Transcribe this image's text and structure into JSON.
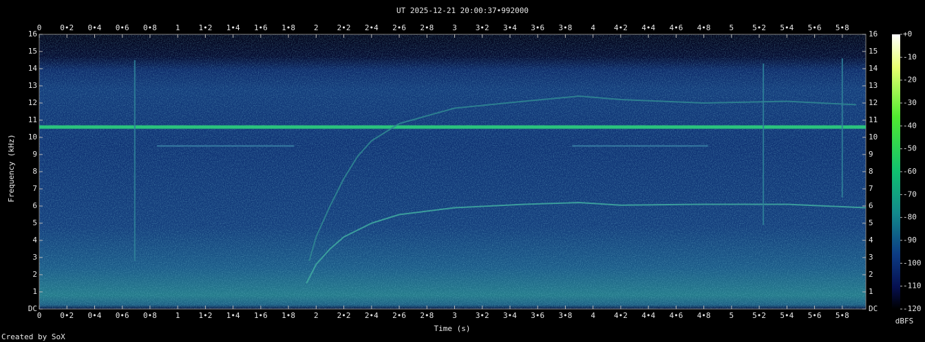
{
  "chart_data": {
    "type": "spectrogram",
    "title": "UT 2025-12-21 20:00:37•992000",
    "x_label": "Time (s)",
    "y_label": "Frequency (kHz)",
    "colorbar_label": "dBFS",
    "footer": "Created by SoX",
    "xlim": [
      0,
      5.97
    ],
    "ylim": [
      0,
      16
    ],
    "xticks": [
      0,
      {
        "value": 0.2,
        "label": "0•2"
      },
      {
        "value": 0.4,
        "label": "0•4"
      },
      {
        "value": 0.6,
        "label": "0•6"
      },
      {
        "value": 0.8,
        "label": "0•8"
      },
      1,
      {
        "value": 1.2,
        "label": "1•2"
      },
      {
        "value": 1.4,
        "label": "1•4"
      },
      {
        "value": 1.6,
        "label": "1•6"
      },
      {
        "value": 1.8,
        "label": "1•8"
      },
      2,
      {
        "value": 2.2,
        "label": "2•2"
      },
      {
        "value": 2.4,
        "label": "2•4"
      },
      {
        "value": 2.6,
        "label": "2•6"
      },
      {
        "value": 2.8,
        "label": "2•8"
      },
      3,
      {
        "value": 3.2,
        "label": "3•2"
      },
      {
        "value": 3.4,
        "label": "3•4"
      },
      {
        "value": 3.6,
        "label": "3•6"
      },
      {
        "value": 3.8,
        "label": "3•8"
      },
      4,
      {
        "value": 4.2,
        "label": "4•2"
      },
      {
        "value": 4.4,
        "label": "4•4"
      },
      {
        "value": 4.6,
        "label": "4•6"
      },
      {
        "value": 4.8,
        "label": "4•8"
      },
      5,
      {
        "value": 5.2,
        "label": "5•2"
      },
      {
        "value": 5.4,
        "label": "5•4"
      },
      {
        "value": 5.6,
        "label": "5•6"
      },
      {
        "value": 5.8,
        "label": "5•8"
      }
    ],
    "yticks": [
      {
        "value": 0,
        "label": "DC"
      },
      1,
      2,
      3,
      4,
      5,
      6,
      7,
      8,
      9,
      10,
      11,
      12,
      13,
      14,
      15,
      16
    ],
    "clim": [
      -120,
      0
    ],
    "cticks": [
      {
        "value": 0,
        "label": "+0"
      },
      -10,
      -20,
      -30,
      -40,
      -50,
      -60,
      -70,
      -80,
      -90,
      -100,
      -110,
      -120
    ],
    "series": [
      {
        "color": "#2ed27c",
        "x": [
          0,
          5.97
        ],
        "values": [
          10.6,
          10.6
        ]
      },
      {
        "color": "#3fa7a0",
        "x": [
          1.93,
          2.0,
          2.1,
          2.2,
          2.4,
          2.6,
          3.0,
          3.5,
          3.9,
          4.2,
          4.8,
          5.4,
          5.97
        ],
        "values": [
          1.5,
          2.6,
          3.5,
          4.2,
          5.0,
          5.5,
          5.9,
          6.1,
          6.2,
          6.05,
          6.1,
          6.1,
          5.9
        ]
      },
      {
        "color": "#2f8592",
        "x": [
          1.95,
          2.0,
          2.1,
          2.2,
          2.3,
          2.4,
          2.6,
          3.0,
          3.5,
          3.9,
          4.2,
          4.8,
          5.4,
          5.9
        ],
        "values": [
          2.8,
          4.2,
          6.0,
          7.6,
          8.9,
          9.8,
          10.8,
          11.7,
          12.1,
          12.4,
          12.2,
          12.0,
          12.1,
          11.9
        ]
      },
      {
        "color": "#3a82a6",
        "x": [
          0.85,
          1.84
        ],
        "values": [
          9.5,
          9.5
        ]
      },
      {
        "color": "#3a82a6",
        "x": [
          3.85,
          4.83
        ],
        "values": [
          9.5,
          9.5
        ]
      },
      {
        "color": "#2d7f98",
        "x": [
          0.69,
          0.69
        ],
        "values": [
          2.8,
          14.5
        ]
      },
      {
        "color": "#2d7f98",
        "x": [
          5.23,
          5.23
        ],
        "values": [
          4.9,
          14.3
        ]
      },
      {
        "color": "#2d7f98",
        "x": [
          5.8,
          5.8
        ],
        "values": [
          6.5,
          14.6
        ]
      }
    ]
  }
}
